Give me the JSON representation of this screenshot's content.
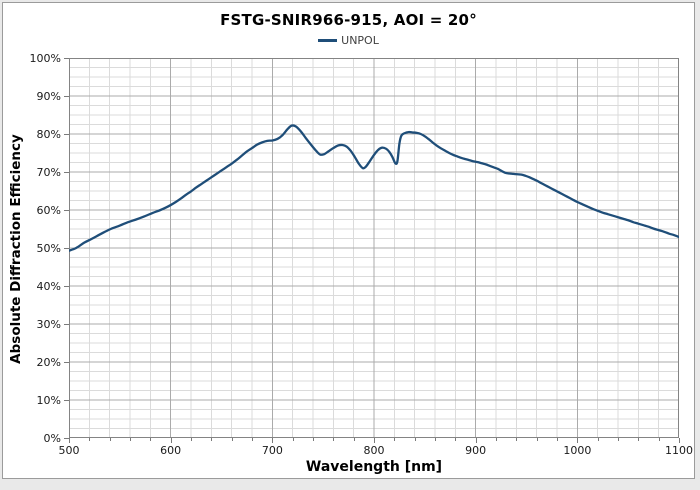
{
  "page": {
    "background": "#E9E9E9",
    "canvas_background": "#FFFFFF",
    "canvas_border": "#9B9B9B"
  },
  "chart_data": {
    "type": "line",
    "title": "FSTG-SNIR966-915, AOI = 20°",
    "xlabel": "Wavelength [nm]",
    "ylabel": "Absolute Diffraction Efficiency",
    "legend_position": "top-center",
    "legend": [
      {
        "name": "UNPOL",
        "color": "#1F4E79"
      }
    ],
    "x_axis": {
      "min": 500,
      "max": 1100,
      "major_step": 100,
      "minor_step": 20,
      "tick_labels": [
        "500",
        "600",
        "700",
        "800",
        "900",
        "1000",
        "1100"
      ]
    },
    "y_axis": {
      "min": 0,
      "max": 100,
      "major_step": 10,
      "minor_step": 2.5,
      "tick_labels": [
        "0%",
        "10%",
        "20%",
        "30%",
        "40%",
        "50%",
        "60%",
        "70%",
        "80%",
        "90%",
        "100%"
      ]
    },
    "grid": {
      "minor_color": "#DBDBDB",
      "major_color": "#ABABAB",
      "border_color": "#848484",
      "tick_color": "#7A7A7A"
    },
    "series": [
      {
        "name": "UNPOL",
        "color": "#1F4E79",
        "width": 2.3,
        "points": [
          [
            500,
            49.3
          ],
          [
            507,
            50.0
          ],
          [
            515,
            51.4
          ],
          [
            523,
            52.5
          ],
          [
            532,
            53.8
          ],
          [
            541,
            55.0
          ],
          [
            550,
            55.9
          ],
          [
            558,
            56.8
          ],
          [
            566,
            57.5
          ],
          [
            574,
            58.3
          ],
          [
            582,
            59.2
          ],
          [
            590,
            60.0
          ],
          [
            595,
            60.6
          ],
          [
            600,
            61.3
          ],
          [
            605,
            62.1
          ],
          [
            610,
            63.0
          ],
          [
            615,
            64.0
          ],
          [
            620,
            64.9
          ],
          [
            625,
            65.9
          ],
          [
            630,
            66.8
          ],
          [
            635,
            67.7
          ],
          [
            640,
            68.6
          ],
          [
            645,
            69.5
          ],
          [
            650,
            70.4
          ],
          [
            655,
            71.3
          ],
          [
            660,
            72.2
          ],
          [
            665,
            73.2
          ],
          [
            670,
            74.3
          ],
          [
            675,
            75.4
          ],
          [
            680,
            76.3
          ],
          [
            685,
            77.2
          ],
          [
            690,
            77.8
          ],
          [
            695,
            78.2
          ],
          [
            700,
            78.3
          ],
          [
            705,
            78.7
          ],
          [
            710,
            79.7
          ],
          [
            715,
            81.3
          ],
          [
            719,
            82.2
          ],
          [
            723,
            82.0
          ],
          [
            728,
            80.7
          ],
          [
            733,
            78.9
          ],
          [
            738,
            77.2
          ],
          [
            743,
            75.6
          ],
          [
            747,
            74.6
          ],
          [
            751,
            74.7
          ],
          [
            755,
            75.4
          ],
          [
            760,
            76.3
          ],
          [
            765,
            77.0
          ],
          [
            769,
            77.1
          ],
          [
            773,
            76.7
          ],
          [
            777,
            75.6
          ],
          [
            781,
            74.0
          ],
          [
            785,
            72.2
          ],
          [
            789,
            71.0
          ],
          [
            792,
            71.4
          ],
          [
            796,
            72.9
          ],
          [
            800,
            74.5
          ],
          [
            804,
            75.8
          ],
          [
            808,
            76.4
          ],
          [
            812,
            76.1
          ],
          [
            815,
            75.3
          ],
          [
            818,
            74.0
          ],
          [
            821,
            72.3
          ],
          [
            823,
            72.8
          ],
          [
            825,
            77.5
          ],
          [
            827,
            79.6
          ],
          [
            830,
            80.2
          ],
          [
            834,
            80.5
          ],
          [
            838,
            80.4
          ],
          [
            842,
            80.3
          ],
          [
            846,
            80.0
          ],
          [
            850,
            79.4
          ],
          [
            854,
            78.6
          ],
          [
            858,
            77.7
          ],
          [
            862,
            76.9
          ],
          [
            866,
            76.2
          ],
          [
            870,
            75.6
          ],
          [
            874,
            75.0
          ],
          [
            878,
            74.5
          ],
          [
            882,
            74.1
          ],
          [
            886,
            73.7
          ],
          [
            890,
            73.4
          ],
          [
            894,
            73.1
          ],
          [
            898,
            72.8
          ],
          [
            902,
            72.6
          ],
          [
            906,
            72.3
          ],
          [
            910,
            72.0
          ],
          [
            914,
            71.6
          ],
          [
            918,
            71.2
          ],
          [
            922,
            70.8
          ],
          [
            926,
            70.2
          ],
          [
            929,
            69.8
          ],
          [
            933,
            69.6
          ],
          [
            937,
            69.5
          ],
          [
            941,
            69.4
          ],
          [
            945,
            69.3
          ],
          [
            949,
            69.0
          ],
          [
            953,
            68.6
          ],
          [
            957,
            68.1
          ],
          [
            961,
            67.6
          ],
          [
            965,
            67.0
          ],
          [
            970,
            66.3
          ],
          [
            975,
            65.6
          ],
          [
            980,
            64.9
          ],
          [
            985,
            64.2
          ],
          [
            990,
            63.5
          ],
          [
            995,
            62.8
          ],
          [
            1000,
            62.1
          ],
          [
            1005,
            61.5
          ],
          [
            1010,
            60.9
          ],
          [
            1015,
            60.3
          ],
          [
            1020,
            59.8
          ],
          [
            1025,
            59.3
          ],
          [
            1030,
            58.9
          ],
          [
            1035,
            58.5
          ],
          [
            1040,
            58.1
          ],
          [
            1045,
            57.7
          ],
          [
            1050,
            57.3
          ],
          [
            1055,
            56.8
          ],
          [
            1060,
            56.4
          ],
          [
            1065,
            56.0
          ],
          [
            1070,
            55.6
          ],
          [
            1075,
            55.1
          ],
          [
            1080,
            54.7
          ],
          [
            1085,
            54.3
          ],
          [
            1090,
            53.8
          ],
          [
            1095,
            53.4
          ],
          [
            1100,
            52.9
          ]
        ]
      }
    ]
  }
}
